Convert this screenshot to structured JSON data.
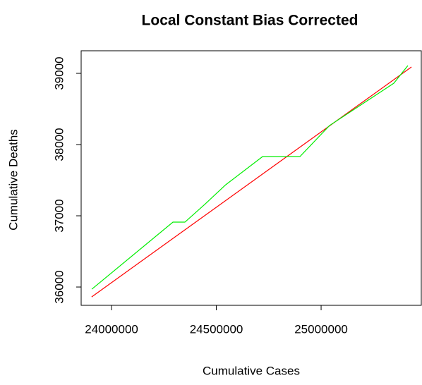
{
  "chart_data": {
    "type": "line",
    "title": "Local Constant Bias Corrected",
    "x_label": "Cumulative Cases",
    "y_label": "Cumulative Deaths",
    "xlim": [
      23855000,
      25478000
    ],
    "ylim": [
      35743,
      39317
    ],
    "xticks": [
      24000000,
      24500000,
      25000000
    ],
    "yticks": [
      36000,
      37000,
      38000,
      39000
    ],
    "series": [
      {
        "color": "#ff0000",
        "x": [
          23905000,
          25431000
        ],
        "values": [
          35861,
          39089
        ]
      },
      {
        "color": "#00ee00",
        "x": [
          23906000,
          24293000,
          24350000,
          24444000,
          24545000,
          24721000,
          24808000,
          24899000,
          25040000,
          25347000,
          25414000
        ],
        "values": [
          35970,
          36911,
          36911,
          37158,
          37436,
          37832,
          37832,
          37832,
          38267,
          38861,
          39109
        ]
      }
    ]
  }
}
